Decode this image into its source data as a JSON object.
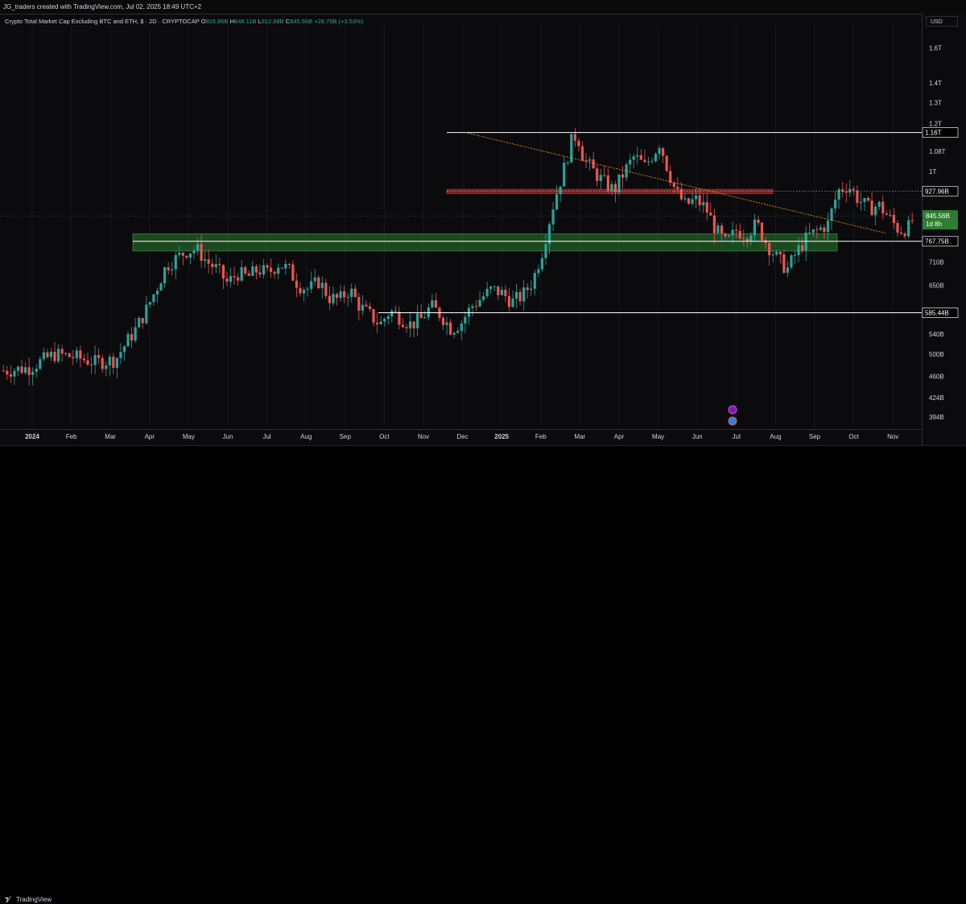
{
  "header": {
    "attribution": "JG_traders created with TradingView.com, Jul 02, 2025 18:49 UTC+2"
  },
  "legend": {
    "symbol": "Crypto Total Market Cap Excluding BTC and ETH, $ · 2D · CRYPTOCAP",
    "open_label": "O",
    "open": "816.86B",
    "high_label": "H",
    "high": "848.11B",
    "low_label": "L",
    "low": "812.88B",
    "close_label": "C",
    "close": "845.56B",
    "change": "+28.79B (+3.53%)"
  },
  "currency": "USD",
  "footer": {
    "brand": "TradingView"
  },
  "colors": {
    "up": "#26a69a",
    "down": "#ef5350",
    "support_zone": "#2e7d32",
    "resistance_zone": "#c62828",
    "trendline": "#f59e0b",
    "level_line": "#ffffff"
  },
  "chart_data": {
    "type": "candlestick",
    "symbol": "Crypto Total Market Cap Excluding BTC and ETH",
    "interval": "2D",
    "scale": "log",
    "x_ticks": [
      "2024",
      "Feb",
      "Mar",
      "Apr",
      "May",
      "Jun",
      "Jul",
      "Aug",
      "Sep",
      "Oct",
      "Nov",
      "Dec",
      "2025",
      "Feb",
      "Mar",
      "Apr",
      "May",
      "Jun",
      "Jul",
      "Aug",
      "Sep",
      "Oct",
      "Nov"
    ],
    "y_ticks": [
      {
        "label": "1.6T",
        "value": 1600
      },
      {
        "label": "1.4T",
        "value": 1400
      },
      {
        "label": "1.3T",
        "value": 1300
      },
      {
        "label": "1.2T",
        "value": 1200
      },
      {
        "label": "1.08T",
        "value": 1080
      },
      {
        "label": "1T",
        "value": 1000
      },
      {
        "label": "710B",
        "value": 710
      },
      {
        "label": "650B",
        "value": 650
      },
      {
        "label": "540B",
        "value": 540
      },
      {
        "label": "500B",
        "value": 500
      },
      {
        "label": "460B",
        "value": 460
      },
      {
        "label": "424B",
        "value": 424
      },
      {
        "label": "394B",
        "value": 394
      }
    ],
    "y_range": [
      380,
      1750
    ],
    "levels": [
      {
        "label": "1.16T",
        "value": 1160
      },
      {
        "label": "927.96B",
        "value": 927.96
      },
      {
        "label": "767.75B",
        "value": 767.75
      },
      {
        "label": "585.44B",
        "value": 585.44
      }
    ],
    "last_price": {
      "label": "845.56B",
      "value": 845.56,
      "countdown": "1d 8h"
    },
    "zones": [
      {
        "name": "support",
        "from": 740,
        "to": 790
      },
      {
        "name": "resistance",
        "from": 920,
        "to": 935
      }
    ],
    "trendline": {
      "from_value": 1160,
      "to_value": 792
    },
    "path_points": [
      [
        0,
        470
      ],
      [
        5,
        475
      ],
      [
        10,
        500
      ],
      [
        14,
        495
      ],
      [
        18,
        485
      ],
      [
        22,
        490
      ],
      [
        26,
        550
      ],
      [
        28,
        590
      ],
      [
        30,
        640
      ],
      [
        32,
        700
      ],
      [
        34,
        720
      ],
      [
        36,
        740
      ],
      [
        38,
        745
      ],
      [
        40,
        710
      ],
      [
        42,
        690
      ],
      [
        44,
        655
      ],
      [
        46,
        680
      ],
      [
        48,
        670
      ],
      [
        50,
        690
      ],
      [
        52,
        680
      ],
      [
        54,
        705
      ],
      [
        56,
        690
      ],
      [
        58,
        650
      ],
      [
        60,
        640
      ],
      [
        62,
        660
      ],
      [
        64,
        620
      ],
      [
        66,
        615
      ],
      [
        68,
        640
      ],
      [
        70,
        600
      ],
      [
        72,
        580
      ],
      [
        74,
        560
      ],
      [
        76,
        590
      ],
      [
        78,
        575
      ],
      [
        80,
        560
      ],
      [
        82,
        570
      ],
      [
        84,
        600
      ],
      [
        86,
        580
      ],
      [
        88,
        550
      ],
      [
        90,
        565
      ],
      [
        92,
        600
      ],
      [
        94,
        620
      ],
      [
        96,
        640
      ],
      [
        98,
        630
      ],
      [
        100,
        610
      ],
      [
        102,
        625
      ],
      [
        104,
        660
      ],
      [
        106,
        745
      ],
      [
        108,
        880
      ],
      [
        110,
        1000
      ],
      [
        112,
        1150
      ],
      [
        113,
        1130
      ],
      [
        114,
        1050
      ],
      [
        116,
        1000
      ],
      [
        118,
        960
      ],
      [
        120,
        930
      ],
      [
        122,
        1000
      ],
      [
        124,
        1060
      ],
      [
        126,
        1020
      ],
      [
        128,
        1080
      ],
      [
        129,
        1120
      ],
      [
        130,
        1040
      ],
      [
        132,
        930
      ],
      [
        134,
        880
      ],
      [
        136,
        900
      ],
      [
        138,
        870
      ],
      [
        140,
        800
      ],
      [
        142,
        760
      ],
      [
        144,
        800
      ],
      [
        146,
        790
      ],
      [
        148,
        820
      ],
      [
        150,
        760
      ],
      [
        152,
        720
      ],
      [
        154,
        690
      ],
      [
        156,
        740
      ],
      [
        158,
        780
      ],
      [
        160,
        800
      ],
      [
        162,
        820
      ],
      [
        164,
        930
      ],
      [
        166,
        950
      ],
      [
        168,
        900
      ],
      [
        170,
        870
      ],
      [
        172,
        880
      ],
      [
        174,
        840
      ],
      [
        176,
        800
      ],
      [
        178,
        810
      ],
      [
        179,
        845
      ]
    ],
    "events": [
      "earnings-marker",
      "dividend-marker"
    ]
  }
}
